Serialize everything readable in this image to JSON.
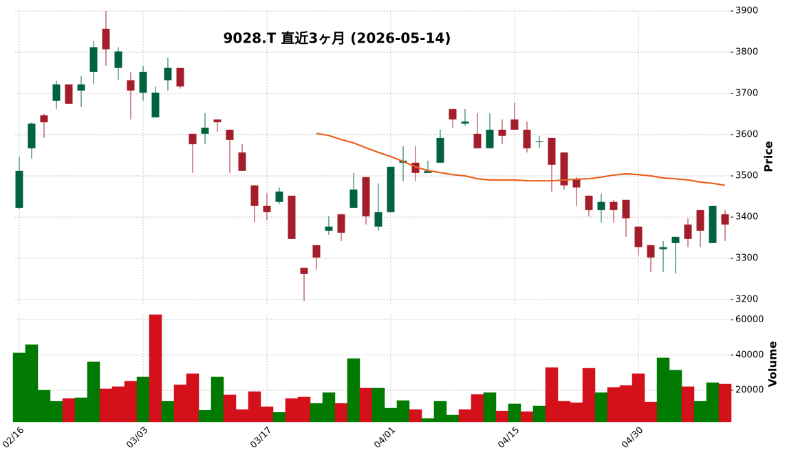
{
  "chart_data": {
    "type": "candlestick",
    "title": "9028.T 直近3ヶ月 (2026-05-14)",
    "categories": [
      "02/16",
      null,
      null,
      null,
      null,
      null,
      null,
      null,
      null,
      null,
      "03/03",
      null,
      null,
      null,
      null,
      null,
      null,
      null,
      null,
      null,
      "03/17",
      null,
      null,
      null,
      null,
      null,
      null,
      null,
      null,
      null,
      "04/01",
      null,
      null,
      null,
      null,
      null,
      null,
      null,
      null,
      null,
      "04/15",
      null,
      null,
      null,
      null,
      null,
      null,
      null,
      null,
      null,
      "04/30",
      null,
      null,
      null,
      null,
      null,
      null,
      null
    ],
    "open": [
      3422,
      3567,
      3647,
      3682,
      3722,
      3707,
      3752,
      3857,
      3762,
      3732,
      3702,
      3642,
      3732,
      3762,
      3602,
      3602,
      3637,
      3612,
      3557,
      3477,
      3427,
      3437,
      3452,
      3277,
      3332,
      3367,
      3407,
      3422,
      3497,
      3377,
      3412,
      3532,
      3532,
      3507,
      3532,
      3662,
      3627,
      3602,
      3567,
      3612,
      3637,
      3612,
      3582,
      3592,
      3557,
      3492,
      3452,
      3417,
      3437,
      3442,
      3377,
      3332,
      3322,
      3337,
      3382,
      3417,
      3337,
      3407
    ],
    "high": [
      3547,
      3630,
      3650,
      3730,
      3722,
      3742,
      3827,
      3900,
      3812,
      3752,
      3767,
      3717,
      3787,
      3762,
      3602,
      3652,
      3637,
      3612,
      3577,
      3477,
      3457,
      3472,
      3452,
      3277,
      3332,
      3402,
      3407,
      3507,
      3497,
      3482,
      3522,
      3572,
      3572,
      3537,
      3612,
      3662,
      3662,
      3652,
      3652,
      3637,
      3677,
      3632,
      3597,
      3592,
      3557,
      3497,
      3452,
      3457,
      3442,
      3442,
      3377,
      3332,
      3342,
      3352,
      3397,
      3417,
      3427,
      3417
    ],
    "low": [
      3420,
      3542,
      3592,
      3662,
      3675,
      3667,
      3722,
      3767,
      3732,
      3637,
      3682,
      3642,
      3707,
      3712,
      3507,
      3577,
      3607,
      3507,
      3512,
      3387,
      3392,
      3432,
      3347,
      3197,
      3272,
      3357,
      3342,
      3422,
      3382,
      3367,
      3412,
      3487,
      3487,
      3507,
      3532,
      3617,
      3622,
      3567,
      3567,
      3577,
      3612,
      3557,
      3567,
      3462,
      3467,
      3427,
      3402,
      3387,
      3387,
      3352,
      3307,
      3267,
      3267,
      3262,
      3327,
      3327,
      3337,
      3342
    ],
    "close": [
      3512,
      3627,
      3630,
      3722,
      3675,
      3722,
      3812,
      3807,
      3802,
      3707,
      3752,
      3702,
      3762,
      3717,
      3577,
      3617,
      3630,
      3587,
      3512,
      3427,
      3412,
      3462,
      3347,
      3262,
      3302,
      3377,
      3362,
      3467,
      3402,
      3412,
      3522,
      3537,
      3507,
      3512,
      3592,
      3637,
      3632,
      3567,
      3612,
      3597,
      3612,
      3567,
      3584,
      3527,
      3477,
      3472,
      3417,
      3437,
      3417,
      3397,
      3327,
      3302,
      3327,
      3352,
      3347,
      3367,
      3427,
      3382
    ],
    "up_color": "#006340",
    "down_color": "#a31e2a",
    "ylim": [
      3190,
      3900
    ],
    "yticks": [
      3200,
      3300,
      3400,
      3500,
      3600,
      3700,
      3800,
      3900
    ],
    "ylabel": "Price",
    "grid": true,
    "ma": {
      "color": "#e8601c",
      "values": [
        null,
        null,
        null,
        null,
        null,
        null,
        null,
        null,
        null,
        null,
        null,
        null,
        null,
        null,
        null,
        null,
        null,
        null,
        null,
        null,
        null,
        null,
        null,
        null,
        3603,
        3598,
        3588,
        3580,
        3568,
        3557,
        3547,
        3535,
        3522,
        3513,
        3508,
        3503,
        3500,
        3493,
        3490,
        3490,
        3490,
        3488,
        3488,
        3488,
        3490,
        3492,
        3493,
        3497,
        3502,
        3505,
        3503,
        3500,
        3495,
        3493,
        3490,
        3485,
        3482,
        3477
      ]
    },
    "volume": {
      "ylabel": "Volume",
      "ylim": [
        2000,
        63000
      ],
      "yticks": [
        20000,
        40000,
        60000
      ],
      "values": [
        41200,
        45900,
        20000,
        13700,
        15300,
        15700,
        36100,
        20800,
        22000,
        25100,
        27500,
        63000,
        13700,
        23100,
        29400,
        8600,
        27500,
        17300,
        9000,
        19200,
        10600,
        7400,
        15300,
        16100,
        12500,
        18600,
        12500,
        38000,
        21200,
        21200,
        9800,
        14100,
        9000,
        3900,
        13700,
        5900,
        9000,
        17600,
        18600,
        8200,
        12200,
        7800,
        11000,
        32900,
        13700,
        12900,
        32500,
        18600,
        21600,
        22700,
        29400,
        13300,
        38400,
        31400,
        22000,
        13700,
        24300,
        23500
      ],
      "colors": [
        "#007a00",
        "#007a00",
        "#007a00",
        "#007a00",
        "#d4101a",
        "#007a00",
        "#007a00",
        "#d4101a",
        "#d4101a",
        "#d4101a",
        "#007a00",
        "#d4101a",
        "#007a00",
        "#d4101a",
        "#d4101a",
        "#007a00",
        "#007a00",
        "#d4101a",
        "#d4101a",
        "#d4101a",
        "#d4101a",
        "#007a00",
        "#d4101a",
        "#d4101a",
        "#007a00",
        "#007a00",
        "#d4101a",
        "#007a00",
        "#d4101a",
        "#007a00",
        "#007a00",
        "#007a00",
        "#d4101a",
        "#007a00",
        "#007a00",
        "#007a00",
        "#d4101a",
        "#d4101a",
        "#007a00",
        "#d4101a",
        "#007a00",
        "#d4101a",
        "#007a00",
        "#d4101a",
        "#d4101a",
        "#d4101a",
        "#d4101a",
        "#007a00",
        "#d4101a",
        "#d4101a",
        "#d4101a",
        "#d4101a",
        "#007a00",
        "#007a00",
        "#d4101a",
        "#007a00",
        "#007a00",
        "#d4101a"
      ]
    }
  }
}
